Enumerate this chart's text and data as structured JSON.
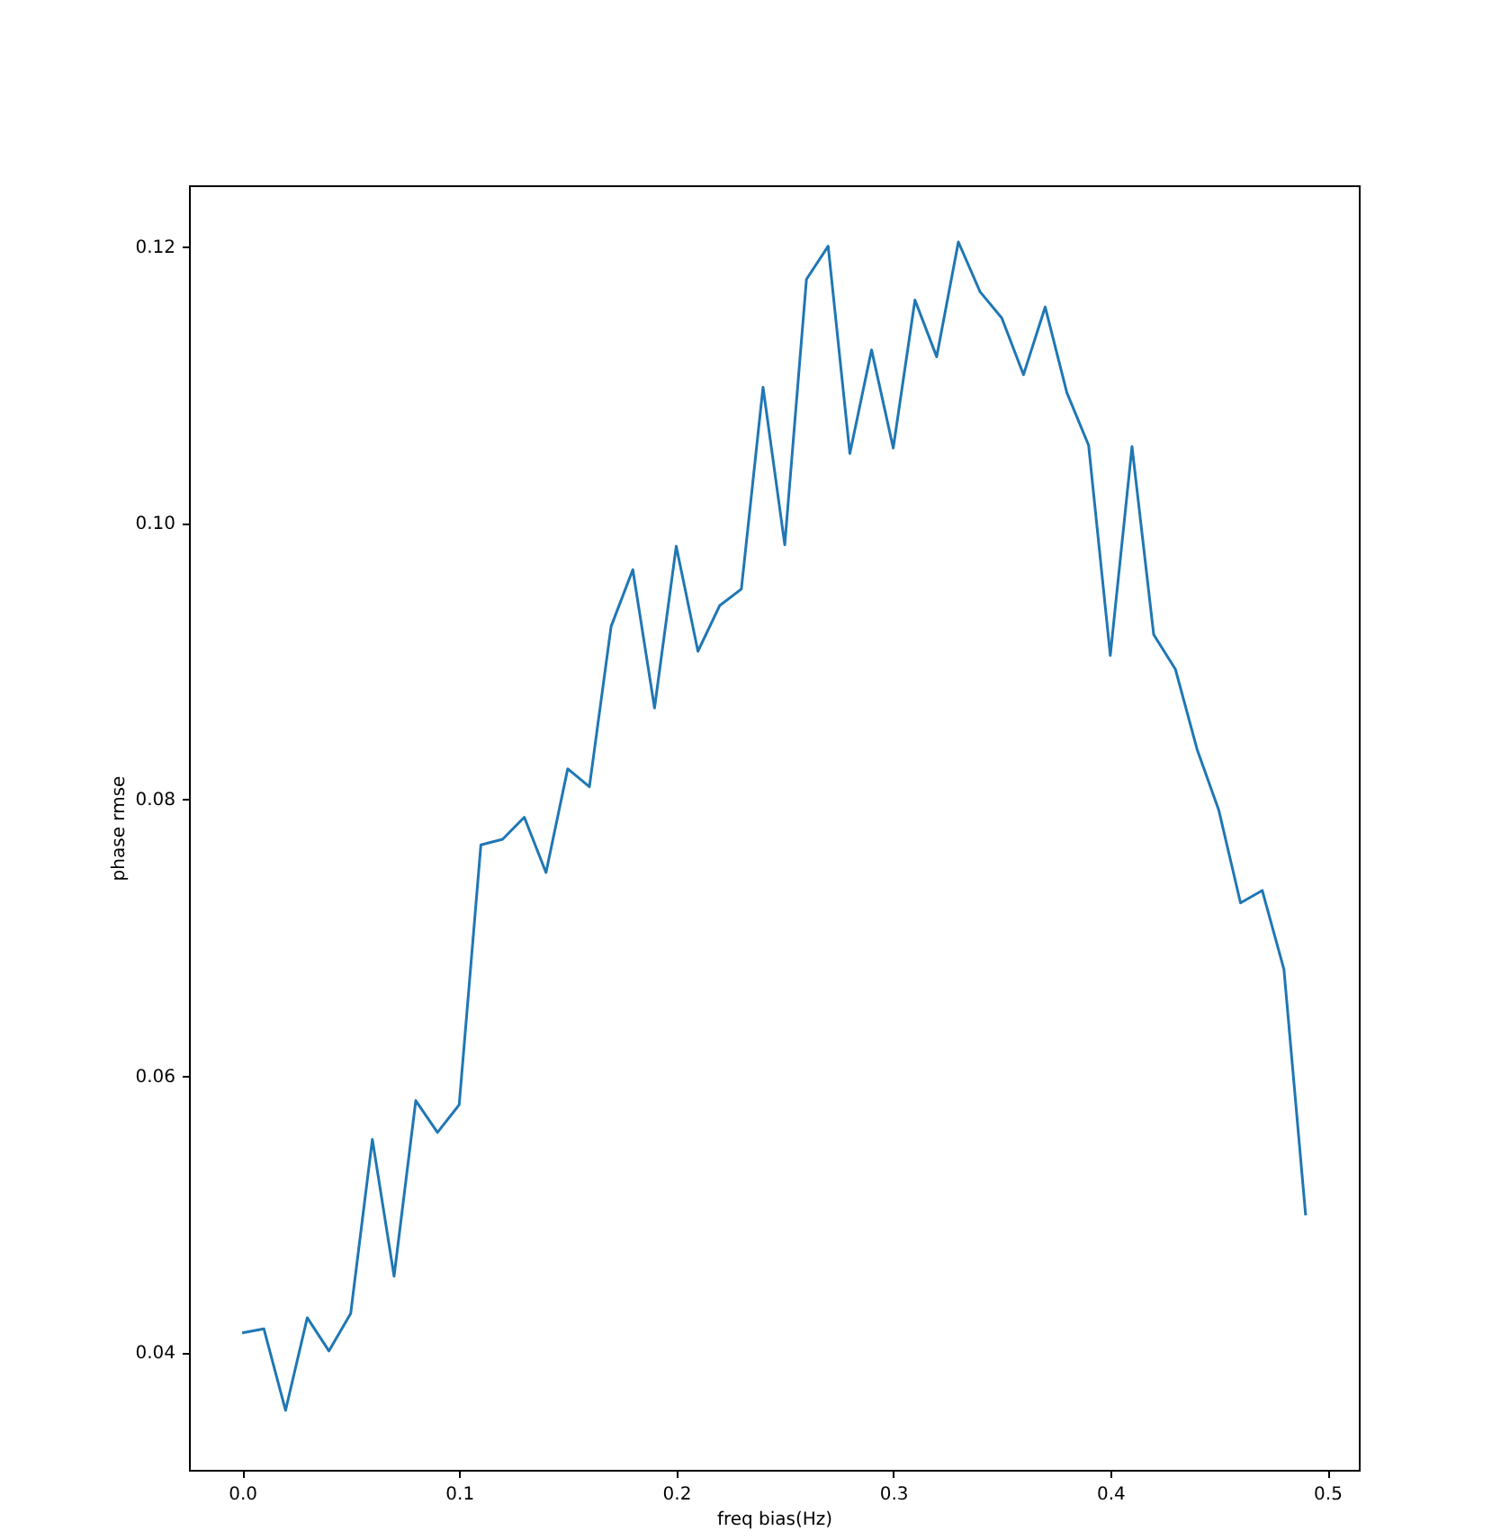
{
  "chart_data": {
    "type": "line",
    "xlabel": "freq bias(Hz)",
    "ylabel": "phase rmse",
    "x": [
      0.0,
      0.01,
      0.02,
      0.03,
      0.04,
      0.05,
      0.06,
      0.07,
      0.08,
      0.09,
      0.1,
      0.11,
      0.12,
      0.13,
      0.14,
      0.15,
      0.16,
      0.17,
      0.18,
      0.19,
      0.2,
      0.21,
      0.22,
      0.23,
      0.24,
      0.25,
      0.26,
      0.27,
      0.28,
      0.29,
      0.3,
      0.31,
      0.32,
      0.33,
      0.34,
      0.35,
      0.36,
      0.37,
      0.38,
      0.39,
      0.4,
      0.41,
      0.42,
      0.43,
      0.44,
      0.45,
      0.46,
      0.47,
      0.48,
      0.49
    ],
    "series": [
      {
        "color": "#1f77b4",
        "values": [
          0.0414,
          0.0417,
          0.0358,
          0.0425,
          0.0401,
          0.0428,
          0.0554,
          0.0455,
          0.0582,
          0.0559,
          0.0579,
          0.0767,
          0.0771,
          0.0787,
          0.0747,
          0.0822,
          0.0809,
          0.0925,
          0.0966,
          0.0866,
          0.0983,
          0.0907,
          0.094,
          0.0952,
          0.1098,
          0.0984,
          0.1176,
          0.12,
          0.105,
          0.1125,
          0.1054,
          0.1161,
          0.112,
          0.1203,
          0.1167,
          0.1148,
          0.1107,
          0.1156,
          0.1094,
          0.1056,
          0.0904,
          0.1055,
          0.0919,
          0.0894,
          0.0836,
          0.0792,
          0.0725,
          0.0734,
          0.0677,
          0.0499
        ]
      }
    ],
    "xlim": [
      -0.0245,
      0.5145
    ],
    "ylim": [
      0.0315,
      0.1244
    ],
    "xticks": [
      {
        "value": 0,
        "label": "0.0"
      },
      0.1,
      0.2,
      0.3,
      0.4,
      0.5
    ],
    "yticks": [
      {
        "value": 0.04,
        "label": "0.04"
      },
      {
        "value": 0.06,
        "label": "0.06"
      },
      {
        "value": 0.08,
        "label": "0.08"
      },
      {
        "value": 0.1,
        "label": "0.10"
      },
      {
        "value": 0.12,
        "label": "0.12"
      }
    ],
    "grid": false,
    "marker": "none",
    "line_style": "solid"
  }
}
